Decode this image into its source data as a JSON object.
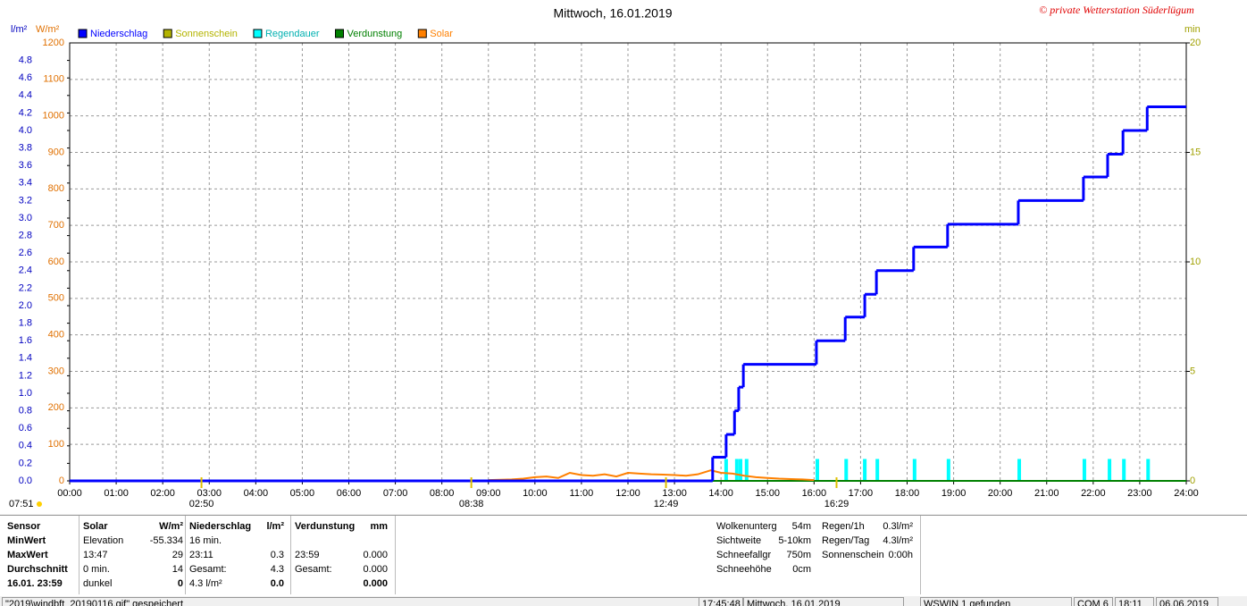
{
  "chart_data": {
    "type": "line",
    "title": "Mittwoch, 16.01.2019",
    "copyright": "© private Wetterstation Süderlügum",
    "units": {
      "y": "l/m²",
      "y3": "W/m²",
      "y2": "min"
    },
    "xlim": [
      0,
      24
    ],
    "xticks": [
      {
        "value": 0,
        "label": "00:00"
      },
      {
        "value": 1,
        "label": "01:00"
      },
      {
        "value": 2,
        "label": "02:00"
      },
      {
        "value": 3,
        "label": "03:00"
      },
      {
        "value": 4,
        "label": "04:00"
      },
      {
        "value": 5,
        "label": "05:00"
      },
      {
        "value": 6,
        "label": "06:00"
      },
      {
        "value": 7,
        "label": "07:00"
      },
      {
        "value": 8,
        "label": "08:00"
      },
      {
        "value": 9,
        "label": "09:00"
      },
      {
        "value": 10,
        "label": "10:00"
      },
      {
        "value": 11,
        "label": "11:00"
      },
      {
        "value": 12,
        "label": "12:00"
      },
      {
        "value": 13,
        "label": "13:00"
      },
      {
        "value": 14,
        "label": "14:00"
      },
      {
        "value": 15,
        "label": "15:00"
      },
      {
        "value": 16,
        "label": "16:00"
      },
      {
        "value": 17,
        "label": "17:00"
      },
      {
        "value": 18,
        "label": "18:00"
      },
      {
        "value": 19,
        "label": "19:00"
      },
      {
        "value": 20,
        "label": "20:00"
      },
      {
        "value": 21,
        "label": "21:00"
      },
      {
        "value": 22,
        "label": "22:00"
      },
      {
        "value": 23,
        "label": "23:00"
      },
      {
        "value": 24,
        "label": "24:00"
      }
    ],
    "ylim": [
      0,
      5
    ],
    "yticks": [
      {
        "value": 0,
        "label": "0.0"
      },
      0.2,
      0.4,
      0.6,
      0.8,
      {
        "value": 1,
        "label": "1.0"
      },
      1.2,
      1.4,
      1.6,
      1.8,
      {
        "value": 2,
        "label": "2.0"
      },
      2.2,
      2.4,
      2.6,
      2.8,
      {
        "value": 3,
        "label": "3.0"
      },
      3.2,
      3.4,
      3.6,
      3.8,
      {
        "value": 4,
        "label": "4.0"
      },
      4.2,
      4.4,
      4.6,
      4.8
    ],
    "y3lim": [
      0,
      1200
    ],
    "y3ticks": [
      0,
      100,
      200,
      300,
      400,
      500,
      600,
      700,
      800,
      900,
      1000,
      1100,
      1200
    ],
    "y2lim": [
      0,
      20
    ],
    "y2ticks": [
      0,
      5,
      10,
      15,
      20
    ],
    "grid": true,
    "legend": "top-left",
    "series": [
      {
        "name": "Niederschlag",
        "color": "#0000ff",
        "kind": "step",
        "axis": "y",
        "x": [
          0,
          13.82,
          14.11,
          14.29,
          14.38,
          14.48,
          16.05,
          16.67,
          17.09,
          17.34,
          18.14,
          18.87,
          20.39,
          21.79,
          22.31,
          22.64,
          23.16
        ],
        "values": [
          0,
          0.27,
          0.53,
          0.8,
          1.07,
          1.33,
          1.6,
          1.87,
          2.13,
          2.4,
          2.67,
          2.93,
          3.2,
          3.47,
          3.73,
          4,
          4.27
        ]
      },
      {
        "name": "Sonnenschein",
        "color": "#b4b400",
        "kind": "line",
        "axis": "y2",
        "x": [],
        "values": []
      },
      {
        "name": "Regendauer",
        "color": "#00ffff",
        "kind": "bar",
        "axis": "y2",
        "x": [
          14.11,
          14.34,
          14.42,
          14.55,
          16.07,
          16.69,
          17.09,
          17.36,
          18.16,
          18.89,
          20.41,
          21.81,
          22.35,
          22.66,
          23.18
        ],
        "values": [
          1,
          1,
          1,
          1,
          1,
          1,
          1,
          1,
          1,
          1,
          1,
          1,
          1,
          1,
          1
        ]
      },
      {
        "name": "Verdunstung",
        "color": "#008000",
        "kind": "line",
        "axis": "y",
        "x": [
          0,
          24
        ],
        "values": [
          0,
          0
        ]
      },
      {
        "name": "Solar",
        "color": "#ff8000",
        "kind": "line",
        "axis": "y3",
        "x": [
          9,
          9.25,
          9.5,
          9.75,
          10,
          10.25,
          10.5,
          10.75,
          11,
          11.25,
          11.5,
          11.75,
          12,
          12.25,
          12.5,
          12.75,
          13,
          13.25,
          13.5,
          13.78,
          14,
          14.25,
          14.5,
          14.75,
          15,
          15.25,
          15.5,
          15.75,
          16
        ],
        "values": [
          2,
          3,
          4,
          6,
          10,
          12,
          8,
          22,
          16,
          14,
          18,
          12,
          22,
          20,
          18,
          17,
          16,
          14,
          18,
          29,
          22,
          20,
          14,
          10,
          8,
          6,
          5,
          4,
          2
        ]
      }
    ],
    "sunrise": "07:51",
    "annotations": [
      {
        "value": 2.833,
        "label": "02:50"
      },
      {
        "value": 8.633,
        "label": "08:38"
      },
      {
        "value": 12.817,
        "label": "12:49"
      },
      {
        "value": 16.483,
        "label": "16:29"
      }
    ]
  },
  "stats": {
    "columns": [
      {
        "header": {
          "label": "Sensor"
        },
        "rows": [
          {
            "label": "MinWert"
          },
          {
            "label": "MaxWert"
          },
          {
            "label": "Durchschnitt"
          },
          {
            "label": "16.01. 23:59"
          }
        ]
      },
      {
        "header": {
          "label": "Solar",
          "value": "W/m²"
        },
        "rows": [
          {
            "label": "Elevation",
            "value": "-55.334"
          },
          {
            "label": "13:47",
            "value": "29"
          },
          {
            "label": "0 min.",
            "value": "14"
          },
          {
            "label": "dunkel",
            "value": "0"
          }
        ]
      },
      {
        "header": {
          "label": "Niederschlag",
          "value": "l/m²"
        },
        "rows": [
          {
            "label": "16 min."
          },
          {
            "label": "23:11",
            "value": "0.3"
          },
          {
            "label": "Gesamt:",
            "value": "4.3"
          },
          {
            "label": "4.3 l/m²",
            "value": "0.0"
          }
        ]
      },
      {
        "header": {
          "label": "Verdunstung",
          "value": "mm"
        },
        "rows": [
          {},
          {
            "label": "23:59",
            "value": "0.000"
          },
          {
            "label": "Gesamt:",
            "value": "0.000"
          },
          {
            "value": "0.000"
          }
        ]
      }
    ],
    "info": [
      [
        {
          "label": "Wolkenunterg",
          "value": "54m"
        },
        {
          "label": "Sichtweite",
          "value": "5-10km"
        },
        {
          "label": "Schneefallgr",
          "value": "750m"
        },
        {
          "label": "Schneehöhe",
          "value": "0cm"
        }
      ],
      [
        {
          "label": "Regen/1h",
          "value": "0.3l/m²"
        },
        {
          "label": "Regen/Tag",
          "value": "4.3l/m²"
        },
        {
          "label": "Sonnenschein",
          "value": "0:00h"
        }
      ]
    ]
  },
  "status_bar": [
    "\"2019\\windbft_20190116.gif\" gespeichert",
    "17:45:48",
    "Mittwoch, 16.01.2019",
    "WSWIN 1 gefunden",
    "COM 6",
    "18:11",
    "06.06.2019"
  ]
}
